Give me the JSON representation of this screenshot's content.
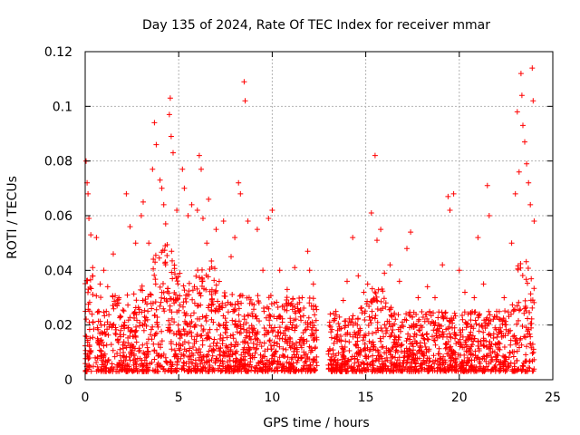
{
  "chart_data": {
    "type": "scatter",
    "title": "Day 135 of 2024, Rate Of TEC Index for receiver mmar",
    "xlabel": "GPS time / hours",
    "ylabel": "ROTI / TECUs",
    "xlim": [
      0,
      25
    ],
    "ylim": [
      0,
      0.12
    ],
    "xticks": [
      0,
      5,
      10,
      15,
      20,
      25
    ],
    "xtick_labels": [
      "0",
      "5",
      "10",
      "15",
      "20",
      "25"
    ],
    "yticks": [
      0,
      0.02,
      0.04,
      0.06,
      0.08,
      0.1,
      0.12
    ],
    "ytick_labels": [
      "0",
      "0.02",
      "0.04",
      "0.06",
      "0.08",
      "0.1",
      "0.12"
    ],
    "grid": true,
    "marker": "+",
    "series_color": "#ff0000",
    "gap_hours": [
      12.4,
      13.0
    ],
    "series": [
      {
        "name": "ROTI",
        "points": [
          [
            0.05,
            0.08
          ],
          [
            0.1,
            0.072
          ],
          [
            0.15,
            0.068
          ],
          [
            0.2,
            0.059
          ],
          [
            0.3,
            0.053
          ],
          [
            0.4,
            0.041
          ],
          [
            0.6,
            0.052
          ],
          [
            0.8,
            0.035
          ],
          [
            1.0,
            0.04
          ],
          [
            1.2,
            0.034
          ],
          [
            1.5,
            0.046
          ],
          [
            1.8,
            0.03
          ],
          [
            2.2,
            0.068
          ],
          [
            2.4,
            0.056
          ],
          [
            2.7,
            0.05
          ],
          [
            3.0,
            0.06
          ],
          [
            3.1,
            0.065
          ],
          [
            3.4,
            0.05
          ],
          [
            3.6,
            0.077
          ],
          [
            3.7,
            0.094
          ],
          [
            3.8,
            0.086
          ],
          [
            4.0,
            0.073
          ],
          [
            4.1,
            0.07
          ],
          [
            4.2,
            0.064
          ],
          [
            4.3,
            0.057
          ],
          [
            4.5,
            0.097
          ],
          [
            4.55,
            0.103
          ],
          [
            4.6,
            0.089
          ],
          [
            4.7,
            0.083
          ],
          [
            4.9,
            0.062
          ],
          [
            5.2,
            0.077
          ],
          [
            5.3,
            0.07
          ],
          [
            5.5,
            0.06
          ],
          [
            5.7,
            0.064
          ],
          [
            6.0,
            0.062
          ],
          [
            6.1,
            0.082
          ],
          [
            6.2,
            0.077
          ],
          [
            6.3,
            0.059
          ],
          [
            6.5,
            0.05
          ],
          [
            6.6,
            0.066
          ],
          [
            7.0,
            0.055
          ],
          [
            7.4,
            0.058
          ],
          [
            7.8,
            0.045
          ],
          [
            8.0,
            0.052
          ],
          [
            8.2,
            0.072
          ],
          [
            8.3,
            0.068
          ],
          [
            8.5,
            0.109
          ],
          [
            8.55,
            0.102
          ],
          [
            8.7,
            0.058
          ],
          [
            9.2,
            0.055
          ],
          [
            9.5,
            0.04
          ],
          [
            9.8,
            0.059
          ],
          [
            10.0,
            0.062
          ],
          [
            10.4,
            0.04
          ],
          [
            10.8,
            0.033
          ],
          [
            11.2,
            0.041
          ],
          [
            11.6,
            0.03
          ],
          [
            11.9,
            0.047
          ],
          [
            12.0,
            0.04
          ],
          [
            12.2,
            0.035
          ],
          [
            13.1,
            0.024
          ],
          [
            13.4,
            0.025
          ],
          [
            13.8,
            0.029
          ],
          [
            14.0,
            0.036
          ],
          [
            14.3,
            0.052
          ],
          [
            14.6,
            0.038
          ],
          [
            14.9,
            0.032
          ],
          [
            15.1,
            0.035
          ],
          [
            15.3,
            0.061
          ],
          [
            15.5,
            0.082
          ],
          [
            15.6,
            0.051
          ],
          [
            15.8,
            0.055
          ],
          [
            16.0,
            0.039
          ],
          [
            16.3,
            0.042
          ],
          [
            16.8,
            0.036
          ],
          [
            17.2,
            0.048
          ],
          [
            17.4,
            0.054
          ],
          [
            17.8,
            0.03
          ],
          [
            18.3,
            0.034
          ],
          [
            18.7,
            0.03
          ],
          [
            19.1,
            0.042
          ],
          [
            19.4,
            0.067
          ],
          [
            19.5,
            0.062
          ],
          [
            19.7,
            0.068
          ],
          [
            20.0,
            0.04
          ],
          [
            20.3,
            0.032
          ],
          [
            20.8,
            0.03
          ],
          [
            21.0,
            0.052
          ],
          [
            21.3,
            0.035
          ],
          [
            21.5,
            0.071
          ],
          [
            21.6,
            0.06
          ],
          [
            22.0,
            0.025
          ],
          [
            22.4,
            0.03
          ],
          [
            22.8,
            0.05
          ],
          [
            23.0,
            0.068
          ],
          [
            23.1,
            0.098
          ],
          [
            23.2,
            0.076
          ],
          [
            23.3,
            0.112
          ],
          [
            23.35,
            0.104
          ],
          [
            23.4,
            0.093
          ],
          [
            23.5,
            0.087
          ],
          [
            23.6,
            0.079
          ],
          [
            23.7,
            0.072
          ],
          [
            23.8,
            0.064
          ],
          [
            23.9,
            0.114
          ],
          [
            23.95,
            0.102
          ],
          [
            24.0,
            0.058
          ]
        ]
      }
    ]
  }
}
